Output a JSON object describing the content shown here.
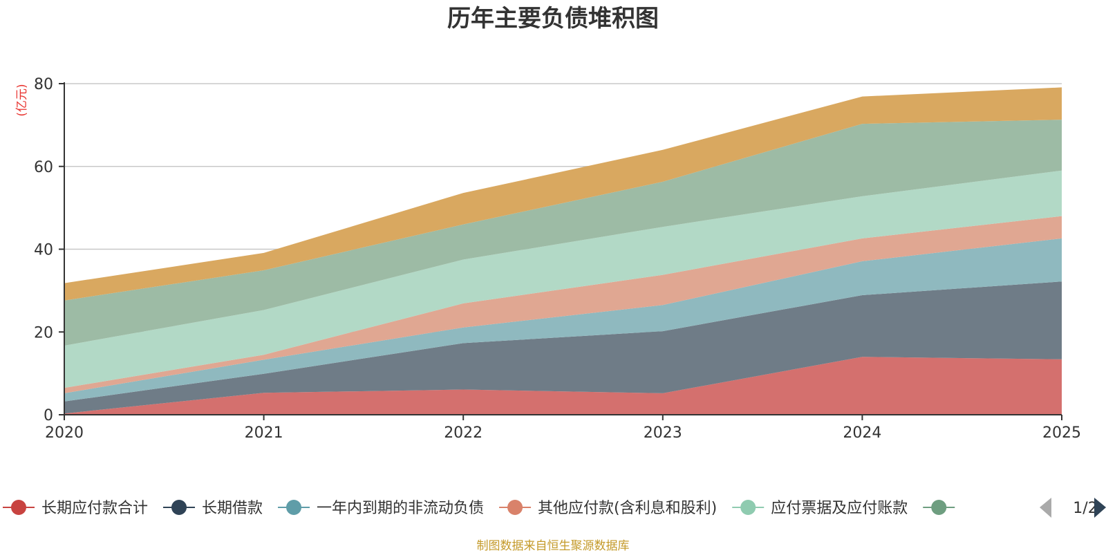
{
  "chart_data": {
    "type": "area",
    "stacked": true,
    "title": "历年主要负债堆积图",
    "unit_label": "(亿元)",
    "categories": [
      "2020",
      "2021",
      "2022",
      "2023",
      "2024",
      "2025"
    ],
    "ylim": [
      0,
      80
    ],
    "yticks": [
      0,
      20,
      40,
      60,
      80
    ],
    "grid": true,
    "series": [
      {
        "name": "长期应付款合计",
        "color": "#d4706e",
        "values": [
          0.3,
          5.3,
          6.1,
          5.2,
          14.0,
          13.4
        ]
      },
      {
        "name": "长期借款",
        "color": "#6f7c87",
        "values": [
          2.9,
          4.6,
          11.2,
          15.0,
          14.9,
          18.8
        ]
      },
      {
        "name": "一年内到期的非流动负债",
        "color": "#8fb9bf",
        "values": [
          2.0,
          3.4,
          3.8,
          6.3,
          8.2,
          10.4
        ]
      },
      {
        "name": "其他应付款(含利息和股利)",
        "color": "#e0a792",
        "values": [
          1.3,
          1.2,
          5.8,
          7.3,
          5.5,
          5.4
        ]
      },
      {
        "name": "应付票据及应付账款",
        "color": "#b2d9c6",
        "values": [
          10.2,
          10.8,
          10.6,
          11.6,
          10.2,
          11.0
        ]
      },
      {
        "name": "",
        "color": "#9dbba5",
        "values": [
          10.9,
          9.6,
          8.5,
          10.9,
          17.5,
          12.3
        ]
      },
      {
        "name": "",
        "color": "#d9a860",
        "values": [
          4.2,
          4.2,
          7.6,
          7.7,
          6.6,
          7.8
        ]
      }
    ],
    "legend": {
      "position": "bottom",
      "visible_items": [
        {
          "label": "长期应付款合计",
          "color": "#c84340"
        },
        {
          "label": "长期借款",
          "color": "#2f4356"
        },
        {
          "label": "一年内到期的非流动负债",
          "color": "#5f9da8"
        },
        {
          "label": "其他应付款(含利息和股利)",
          "color": "#d9826a"
        },
        {
          "label": "应付票据及应付账款",
          "color": "#8fcbb0"
        },
        {
          "label": "",
          "color": "#6e9e80"
        }
      ],
      "page": "1/2"
    },
    "source": "制图数据来自恒生聚源数据库"
  }
}
